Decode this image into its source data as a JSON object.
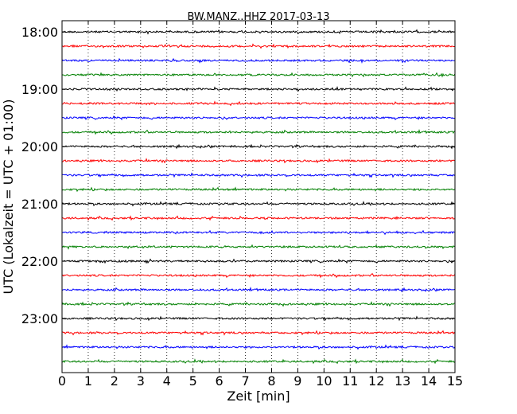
{
  "chart_data": {
    "type": "line",
    "title": "BW.MANZ..HHZ 2017-03-13",
    "xlabel": "Zeit  [min]",
    "ylabel": "UTC (Lokalzeit = UTC + 01:00)",
    "xlim": [
      0,
      15
    ],
    "x_ticks": [
      0,
      1,
      2,
      3,
      4,
      5,
      6,
      7,
      8,
      9,
      10,
      11,
      12,
      13,
      14,
      15
    ],
    "grid": "vertical dotted",
    "trace_colors": [
      "#000000",
      "#ff0000",
      "#0000ff",
      "#008000"
    ],
    "hour_labels": [
      "18:00",
      "19:00",
      "20:00",
      "21:00",
      "22:00",
      "23:00"
    ],
    "traces_per_hour": 4,
    "trace_count": 24
  }
}
